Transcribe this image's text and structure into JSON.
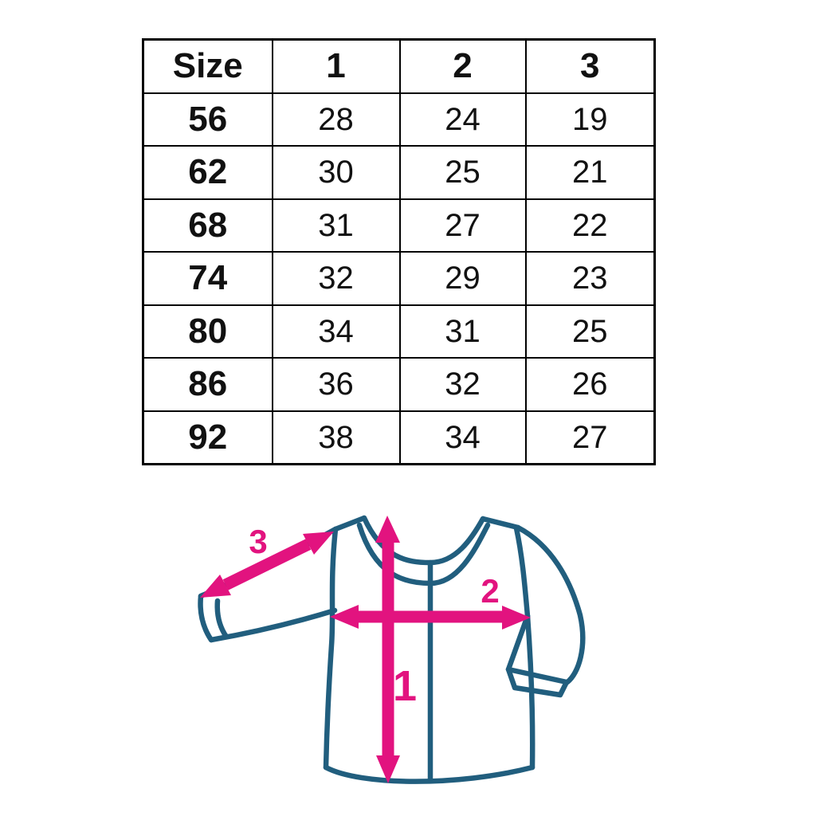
{
  "size_table": {
    "columns": [
      "Size",
      "1",
      "2",
      "3"
    ],
    "rows": [
      [
        "56",
        "28",
        "24",
        "19"
      ],
      [
        "62",
        "30",
        "25",
        "21"
      ],
      [
        "68",
        "31",
        "27",
        "22"
      ],
      [
        "74",
        "32",
        "29",
        "23"
      ],
      [
        "80",
        "34",
        "31",
        "25"
      ],
      [
        "86",
        "36",
        "32",
        "26"
      ],
      [
        "92",
        "38",
        "34",
        "27"
      ]
    ]
  },
  "diagram": {
    "outline_color": "#215e7e",
    "arrow_color": "#e2137f",
    "labels": {
      "length": "1",
      "width": "2",
      "sleeve": "3"
    }
  },
  "chart_data": {
    "type": "table",
    "title": "",
    "columns": [
      "Size",
      "1",
      "2",
      "3"
    ],
    "rows": [
      [
        56,
        28,
        24,
        19
      ],
      [
        62,
        30,
        25,
        21
      ],
      [
        68,
        31,
        27,
        22
      ],
      [
        74,
        32,
        29,
        23
      ],
      [
        80,
        34,
        31,
        25
      ],
      [
        86,
        36,
        32,
        26
      ],
      [
        92,
        38,
        34,
        27
      ]
    ],
    "annotations": [
      "Arrow 1: vertical garment length measurement on shirt drawing",
      "Arrow 2: horizontal chest width measurement on shirt drawing",
      "Arrow 3: diagonal sleeve length measurement on shirt drawing"
    ]
  }
}
